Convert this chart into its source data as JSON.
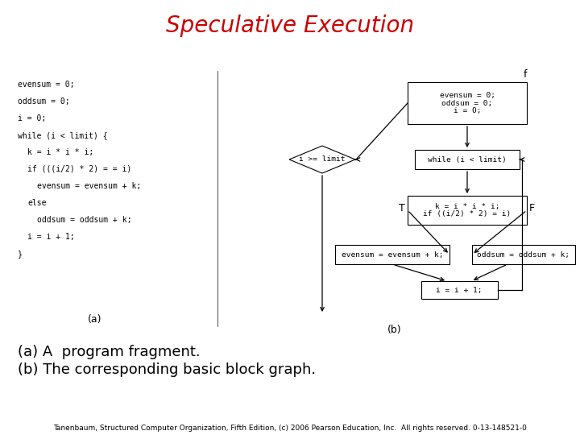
{
  "title": "Speculative Execution",
  "title_color": "#cc0000",
  "title_fontsize": 20,
  "bg_color": "#ffffff",
  "caption_line1": "(a) A  program fragment.",
  "caption_line2": "(b) The corresponding basic block graph.",
  "caption_fontsize": 13,
  "footer": "Tanenbaum, Structured Computer Organization, Fifth Edition, (c) 2006 Pearson Education, Inc.  All rights reserved. 0-13-148521-0",
  "footer_fontsize": 6.5,
  "code_lines": [
    [
      "evensum = 0;",
      0
    ],
    [
      "oddsum = 0;",
      0
    ],
    [
      "i = 0;",
      0
    ],
    [
      "while (i < limit) {",
      0
    ],
    [
      "k = i * i * i;",
      1
    ],
    [
      "if (((i/2) * 2) = = i)",
      1
    ],
    [
      "evensum = evensum + k;",
      2
    ],
    [
      "else",
      1
    ],
    [
      "oddsum = oddsum + k;",
      2
    ],
    [
      "i = i + 1;",
      1
    ],
    [
      "}",
      0
    ]
  ],
  "label_a": "(a)",
  "label_b": "(b)",
  "block1_lines": [
    "evensum = 0;",
    "oddsum = 0;",
    "i = 0;"
  ],
  "block2_lines": [
    "while (i < limit)"
  ],
  "block3_lines": [
    "k = i * i * i;",
    "if ((i/2) * 2) = i)"
  ],
  "block4_lines": [
    "evensum = evensum + k;"
  ],
  "block5_lines": [
    "oddsum = oddsum + k;"
  ],
  "block6_lines": [
    "i = i + 1;"
  ],
  "diamond_text": "i >= limit",
  "code_fontsize": 7.0,
  "block_fontsize": 6.8,
  "diagram_fontsize": 8.5
}
